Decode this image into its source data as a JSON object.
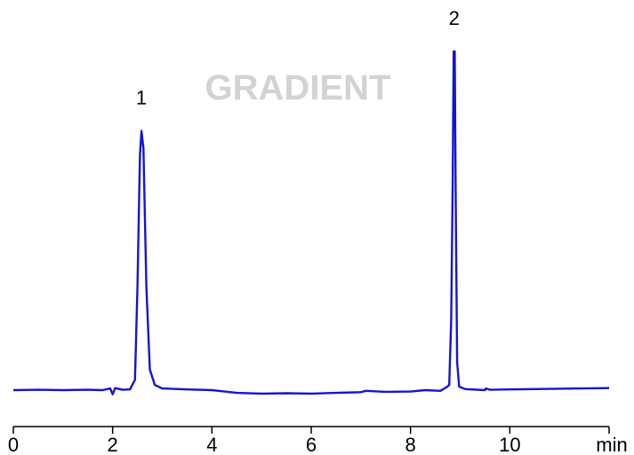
{
  "chart_data": {
    "type": "line",
    "title": "",
    "watermark": "GRADIENT",
    "xlabel": "min",
    "ylabel": "",
    "xlim": [
      0,
      12
    ],
    "x_ticks": [
      0,
      2,
      4,
      6,
      8,
      10
    ],
    "x_tick_labels": [
      "0",
      "2",
      "4",
      "6",
      "8",
      "10"
    ],
    "grid": false,
    "legend": "none",
    "line_color": "#1414d6",
    "ylim": [
      0,
      100
    ],
    "series": [
      {
        "values": [
          {
            "x": 0.0,
            "y": 0.0
          },
          {
            "x": 0.5,
            "y": 0.1
          },
          {
            "x": 1.0,
            "y": 0.0
          },
          {
            "x": 1.5,
            "y": 0.1
          },
          {
            "x": 1.8,
            "y": 0.0
          },
          {
            "x": 1.95,
            "y": 0.5
          },
          {
            "x": 2.0,
            "y": -1.2
          },
          {
            "x": 2.05,
            "y": 0.6
          },
          {
            "x": 2.2,
            "y": 0.1
          },
          {
            "x": 2.35,
            "y": 0.2
          },
          {
            "x": 2.45,
            "y": 3.0
          },
          {
            "x": 2.5,
            "y": 30.0
          },
          {
            "x": 2.55,
            "y": 68.0
          },
          {
            "x": 2.58,
            "y": 75.0
          },
          {
            "x": 2.62,
            "y": 70.0
          },
          {
            "x": 2.68,
            "y": 30.0
          },
          {
            "x": 2.75,
            "y": 6.0
          },
          {
            "x": 2.85,
            "y": 1.5
          },
          {
            "x": 3.0,
            "y": 0.5
          },
          {
            "x": 3.5,
            "y": 0.2
          },
          {
            "x": 4.0,
            "y": 0.0
          },
          {
            "x": 4.5,
            "y": -0.8
          },
          {
            "x": 5.0,
            "y": -1.0
          },
          {
            "x": 5.5,
            "y": -0.9
          },
          {
            "x": 6.0,
            "y": -1.0
          },
          {
            "x": 6.5,
            "y": -0.8
          },
          {
            "x": 7.0,
            "y": -0.6
          },
          {
            "x": 7.1,
            "y": -0.2
          },
          {
            "x": 7.5,
            "y": -0.5
          },
          {
            "x": 8.0,
            "y": -0.4
          },
          {
            "x": 8.3,
            "y": 0.0
          },
          {
            "x": 8.6,
            "y": -0.2
          },
          {
            "x": 8.72,
            "y": 0.8
          },
          {
            "x": 8.78,
            "y": 1.5
          },
          {
            "x": 8.82,
            "y": 20.0
          },
          {
            "x": 8.85,
            "y": 60.0
          },
          {
            "x": 8.87,
            "y": 98.0
          },
          {
            "x": 8.89,
            "y": 98.0
          },
          {
            "x": 8.91,
            "y": 55.0
          },
          {
            "x": 8.94,
            "y": 8.0
          },
          {
            "x": 8.98,
            "y": 1.0
          },
          {
            "x": 9.1,
            "y": 0.3
          },
          {
            "x": 9.5,
            "y": 0.0
          },
          {
            "x": 9.52,
            "y": 0.5
          },
          {
            "x": 9.6,
            "y": 0.1
          },
          {
            "x": 10.0,
            "y": 0.2
          },
          {
            "x": 10.5,
            "y": 0.3
          },
          {
            "x": 11.0,
            "y": 0.4
          },
          {
            "x": 11.5,
            "y": 0.5
          },
          {
            "x": 12.0,
            "y": 0.6
          }
        ]
      }
    ],
    "peaks": [
      {
        "label": "1",
        "x": 2.58
      },
      {
        "label": "2",
        "x": 8.88
      }
    ]
  }
}
